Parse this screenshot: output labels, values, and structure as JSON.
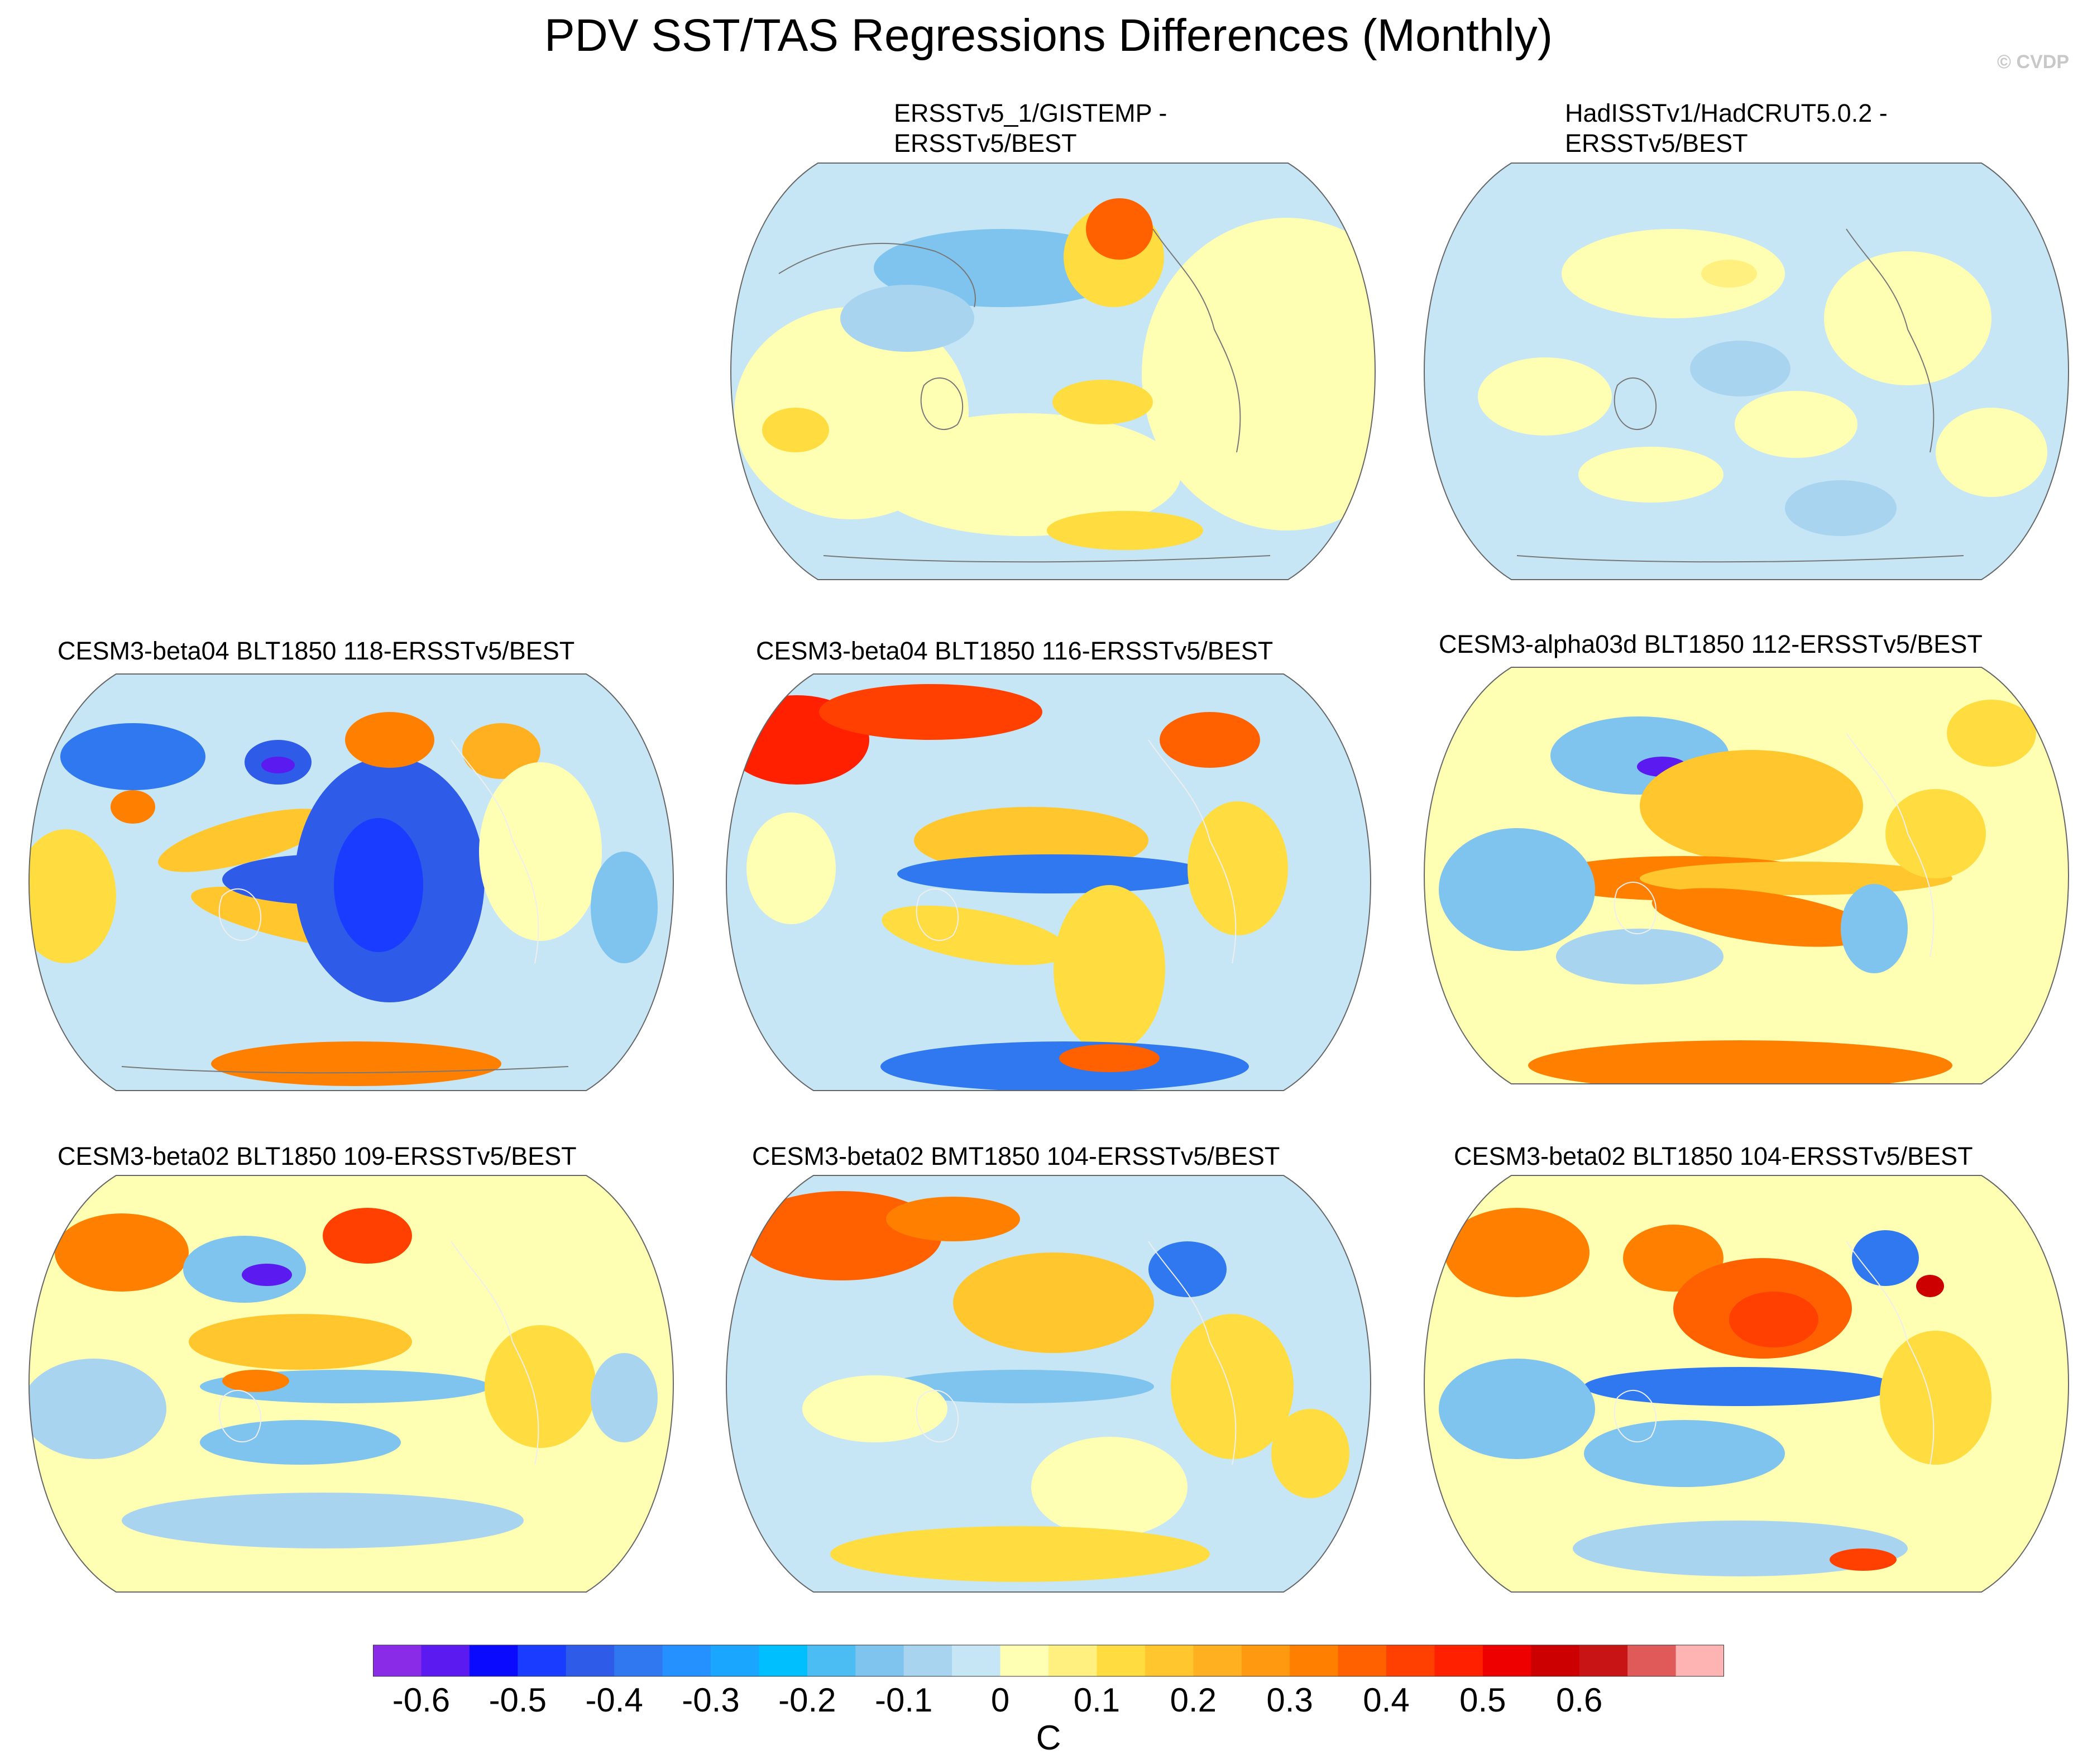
{
  "figure": {
    "title": "PDV SST/TAS Regressions Differences (Monthly)",
    "copyright": "© CVDP"
  },
  "panels": [
    {
      "title_lines": [
        "ERSSTv5_1/GISTEMP -",
        "ERSSTv5/BEST"
      ],
      "dominant": "weak-mixed",
      "max_abs": 0.3
    },
    {
      "title_lines": [
        "HadISSTv1/HadCRUT5.0.2 -",
        "ERSSTv5/BEST"
      ],
      "dominant": "weak-blue",
      "max_abs": 0.15
    },
    {
      "title_lines": [
        "CESM3-beta04 BLT1850 118-ERSSTv5/BEST"
      ],
      "dominant": "strong-blue-pacific",
      "max_abs": 0.6
    },
    {
      "title_lines": [
        "CESM3-beta04 BLT1850 116-ERSSTv5/BEST"
      ],
      "dominant": "red-arctic-blue-pacific",
      "max_abs": 0.5
    },
    {
      "title_lines": [
        "CESM3-alpha03d BLT1850 112-ERSSTv5/BEST"
      ],
      "dominant": "orange-pacific",
      "max_abs": 0.6
    },
    {
      "title_lines": [
        "CESM3-beta02 BLT1850 109-ERSSTv5/BEST"
      ],
      "dominant": "mixed",
      "max_abs": 0.6
    },
    {
      "title_lines": [
        "CESM3-beta02 BMT1850 104-ERSSTv5/BEST"
      ],
      "dominant": "red-north",
      "max_abs": 0.4
    },
    {
      "title_lines": [
        "CESM3-beta02 BLT1850 104-ERSSTv5/BEST"
      ],
      "dominant": "red-north-pacific",
      "max_abs": 0.5
    }
  ],
  "colorbar": {
    "unit": "C",
    "labels": [
      "-0.6",
      "-0.5",
      "-0.4",
      "-0.3",
      "-0.2",
      "-0.1",
      "0",
      "0.1",
      "0.2",
      "0.3",
      "0.4",
      "0.5",
      "0.6"
    ],
    "colors": [
      "#8a2be8",
      "#5a1af0",
      "#0a0aff",
      "#1a3cff",
      "#2e5ce8",
      "#2f78ef",
      "#2590ff",
      "#1aa6ff",
      "#00bfff",
      "#4cbdf2",
      "#7fc4ee",
      "#a8d4f0",
      "#c6e6f5",
      "#ffffb4",
      "#fff080",
      "#ffdc40",
      "#ffc62e",
      "#ffb020",
      "#ff9a10",
      "#ff8000",
      "#ff6000",
      "#ff4000",
      "#ff2000",
      "#ee0000",
      "#cc0000",
      "#c81414",
      "#e05a5a",
      "#ffb4b4"
    ]
  }
}
